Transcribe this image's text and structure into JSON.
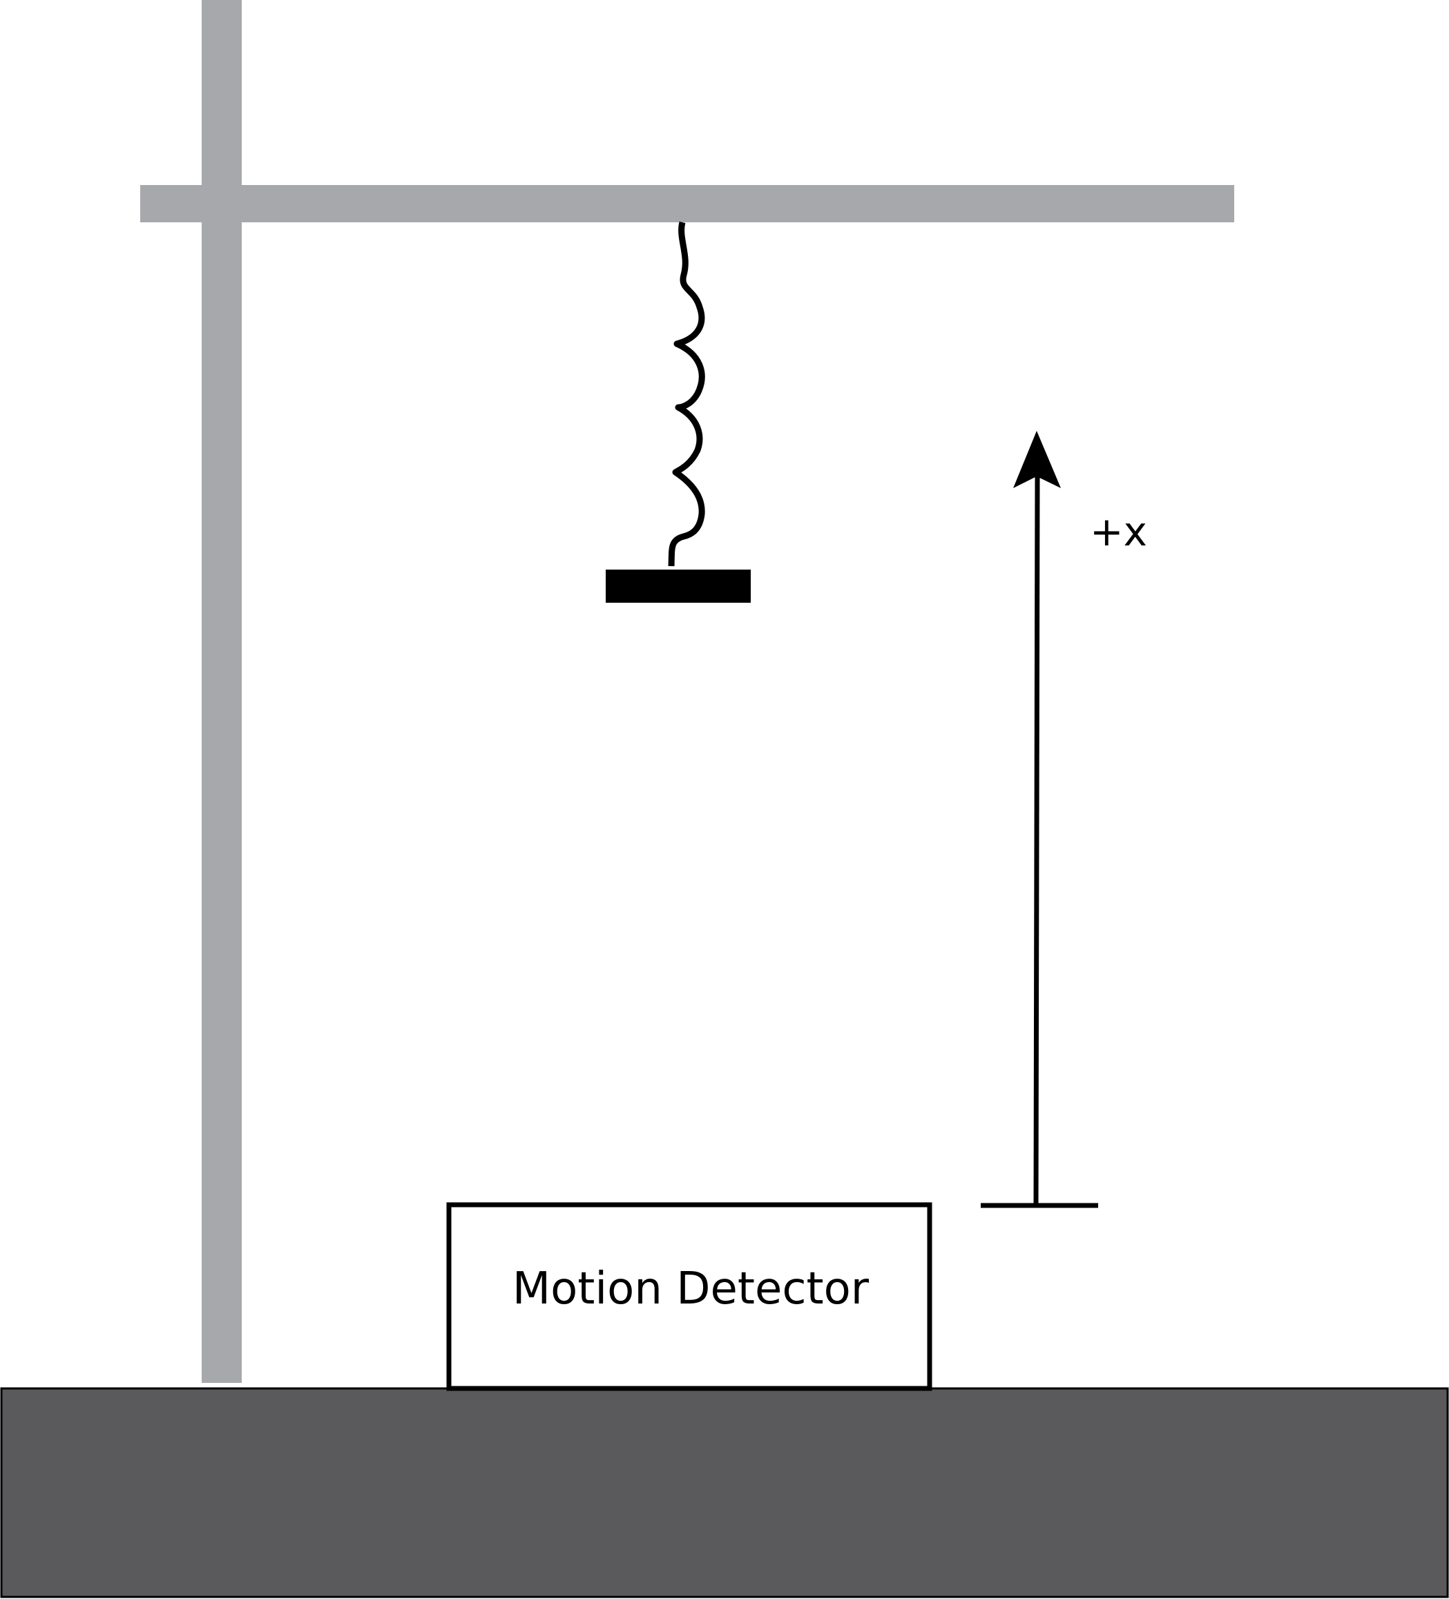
{
  "diagram": {
    "detector_label": "Motion Detector",
    "axis_label": "+x"
  },
  "colors": {
    "stand": "#a7a8ab",
    "ground": "#5a5a5d",
    "ink": "#000000",
    "background": "#ffffff"
  }
}
